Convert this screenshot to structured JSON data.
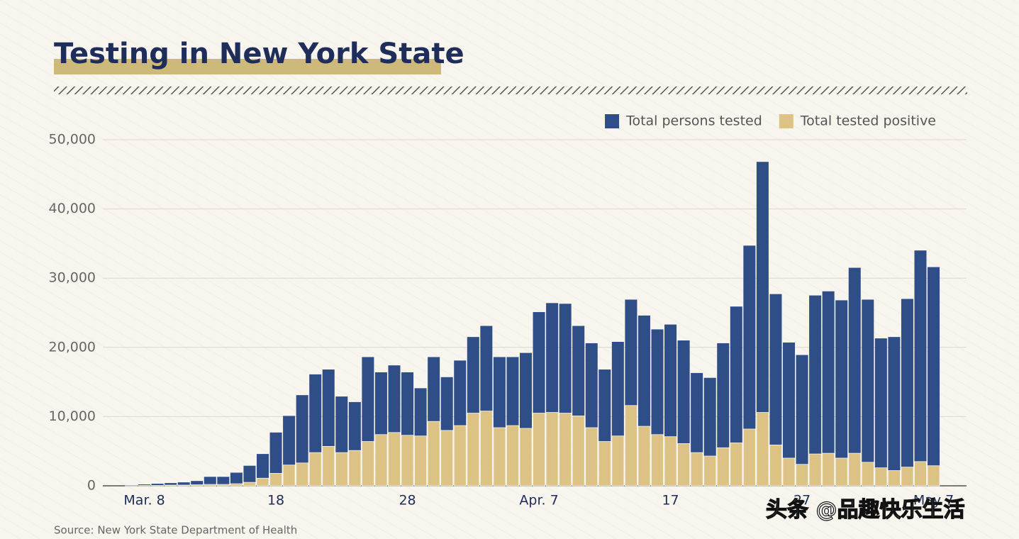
{
  "chart_data": {
    "type": "bar",
    "title": "Testing in New York State",
    "source": "Source: New York State Department of Health",
    "watermark": "头条 @品趣快乐生活",
    "categories": [
      null,
      "Mar. 8",
      null,
      null,
      null,
      null,
      null,
      null,
      null,
      null,
      null,
      "18",
      null,
      null,
      null,
      null,
      null,
      null,
      null,
      null,
      null,
      "28",
      null,
      null,
      null,
      null,
      null,
      null,
      null,
      null,
      null,
      "Apr. 7",
      null,
      null,
      null,
      null,
      null,
      null,
      null,
      null,
      null,
      "17",
      null,
      null,
      null,
      null,
      null,
      null,
      null,
      null,
      null,
      "27",
      null,
      null,
      null,
      null,
      null,
      null,
      null,
      null,
      null,
      "May 7"
    ],
    "series": [
      {
        "name": "Total persons tested",
        "color": "#2f4d86",
        "values": [
          100,
          200,
          300,
          400,
          500,
          700,
          1300,
          1300,
          1900,
          2900,
          4600,
          7700,
          10100,
          13100,
          16100,
          16800,
          12900,
          12100,
          18600,
          16400,
          17400,
          16400,
          14100,
          18600,
          15700,
          18100,
          21500,
          23100,
          18600,
          18600,
          19200,
          25100,
          26400,
          26300,
          23100,
          20600,
          16800,
          20800,
          26900,
          24600,
          22600,
          23300,
          21000,
          16300,
          15600,
          20600,
          25900,
          34700,
          46800,
          27700,
          20700,
          18900,
          27500,
          28100,
          26800,
          31500,
          26900,
          21300,
          21500,
          27000,
          34000,
          31600
        ]
      },
      {
        "name": "Total tested positive",
        "color": "#dcc385",
        "values": [
          30,
          50,
          50,
          100,
          100,
          150,
          200,
          200,
          300,
          500,
          1100,
          1800,
          3000,
          3300,
          4800,
          5700,
          4800,
          5100,
          6400,
          7400,
          7700,
          7300,
          7200,
          9300,
          8000,
          8700,
          10500,
          10800,
          8400,
          8700,
          8300,
          10500,
          10600,
          10500,
          10100,
          8400,
          6400,
          7200,
          11600,
          8600,
          7400,
          7100,
          6100,
          4800,
          4300,
          5500,
          6200,
          8200,
          10600,
          5900,
          4000,
          3100,
          4600,
          4700,
          4000,
          4700,
          3400,
          2600,
          2200,
          2700,
          3500,
          2900
        ]
      }
    ],
    "ylim": [
      0,
      50000
    ],
    "yticks": [
      0,
      {
        "value": 10000,
        "label": "10,000"
      },
      {
        "value": 20000,
        "label": "20,000"
      },
      {
        "value": 30000,
        "label": "30,000"
      },
      {
        "value": 40000,
        "label": "40,000"
      },
      {
        "value": 50000,
        "label": "50,000"
      }
    ],
    "grid": true,
    "legend": "top-right"
  }
}
